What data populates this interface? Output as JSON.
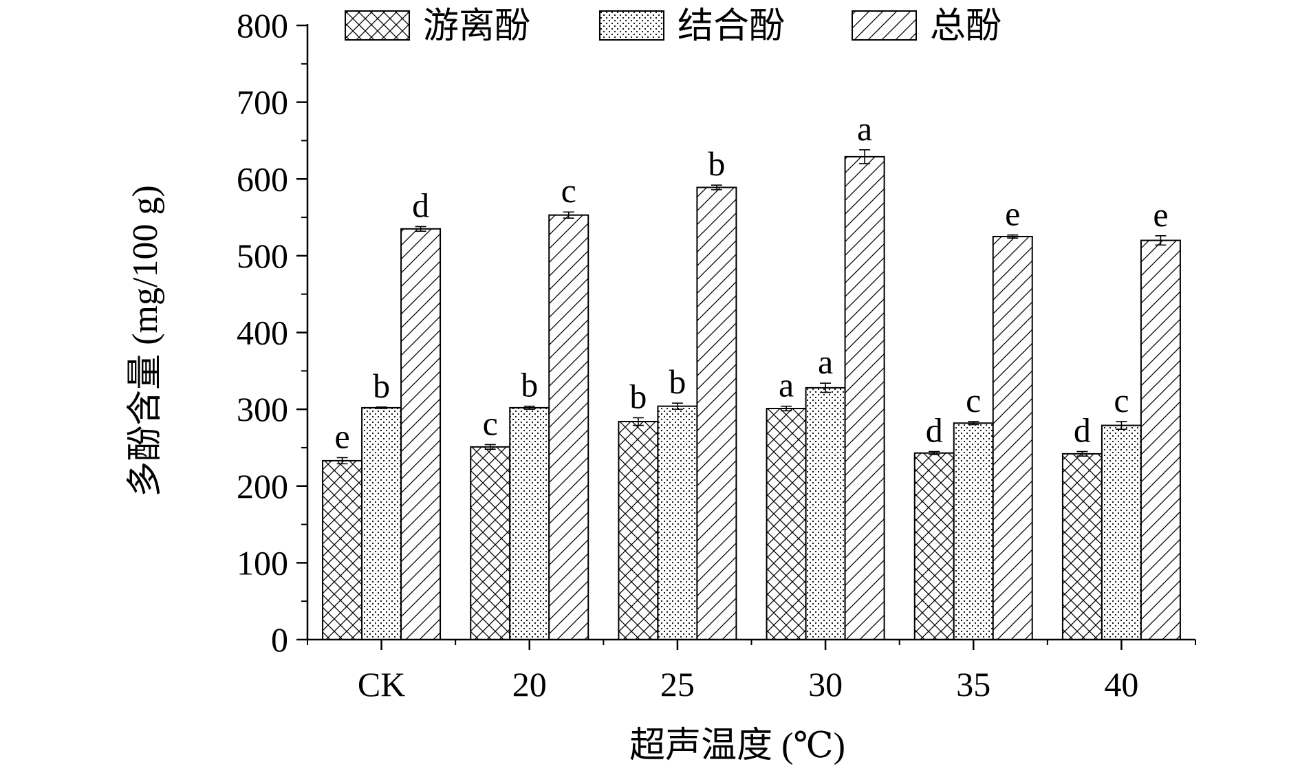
{
  "chart_data": {
    "type": "bar",
    "title": "",
    "xlabel": "超声温度 (℃)",
    "ylabel": "多酚含量 (mg/100 g)",
    "ylim": [
      0,
      800
    ],
    "yticks": [
      0,
      100,
      200,
      300,
      400,
      500,
      600,
      700,
      800
    ],
    "categories": [
      "CK",
      "20",
      "25",
      "30",
      "35",
      "40"
    ],
    "legend_position": "top",
    "grid": false,
    "series": [
      {
        "name": "游离酚",
        "pattern": "crosshatch",
        "values": [
          233,
          251,
          284,
          301,
          243,
          242
        ],
        "errors": [
          4,
          3,
          5,
          3,
          2,
          3
        ],
        "significance": [
          "e",
          "c",
          "b",
          "a",
          "d",
          "d"
        ]
      },
      {
        "name": "结合酚",
        "pattern": "dots",
        "values": [
          302,
          302,
          304,
          328,
          282,
          279
        ],
        "errors": [
          1,
          2,
          4,
          6,
          2,
          5
        ],
        "significance": [
          "b",
          "b",
          "b",
          "a",
          "c",
          "c"
        ]
      },
      {
        "name": "总酚",
        "pattern": "diagonal",
        "values": [
          535,
          553,
          589,
          629,
          525,
          520
        ],
        "errors": [
          3,
          4,
          3,
          9,
          2,
          6
        ],
        "significance": [
          "d",
          "c",
          "b",
          "a",
          "e",
          "e"
        ]
      }
    ],
    "colors": {
      "fill": "#ffffff",
      "stroke": "#000000"
    }
  }
}
